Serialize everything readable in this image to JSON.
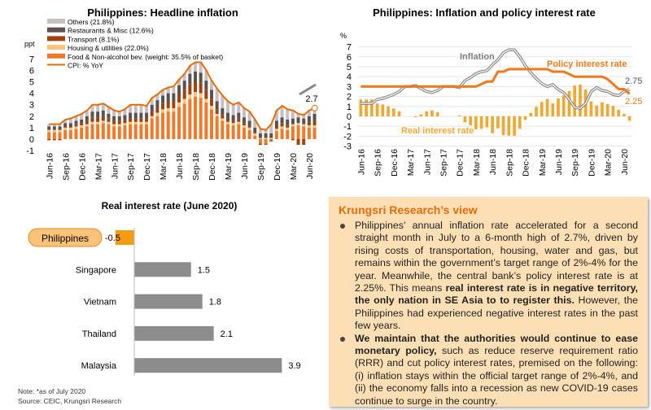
{
  "chart_data": [
    {
      "type": "bar",
      "title": "Philippines: Headline inflation",
      "ylabel": "ppt",
      "ylim": [
        -1,
        7
      ],
      "yticks": [
        "-1",
        "0",
        "1",
        "2",
        "3",
        "4",
        "5",
        "6",
        "7"
      ],
      "xticks": [
        "Jun-16",
        "Sep-16",
        "Dec-16",
        "Mar-17",
        "Jun-17",
        "Sep-17",
        "Dec-17",
        "Mar-18",
        "Jun-18",
        "Sep-18",
        "Dec-18",
        "Mar-19",
        "Jun-19",
        "Sep-19",
        "Dec-19",
        "Mar-20",
        "Jun-20"
      ],
      "legend": [
        "Others (21.8%)",
        "Restaurants & Misc (12.6%)",
        "Transport (8.1%)",
        "Housing & utilities (22.0%)",
        "Food & Non-alcohol bev. (weight: 35.5% of basket)",
        "CPI: % YoY"
      ],
      "colors": {
        "others": "#c9bfc2",
        "restaurants": "#5b5151",
        "transport": "#a0420f",
        "housing": "#fbc47a",
        "food": "#f0792a",
        "cpi": "#e46c0a"
      },
      "cpi": [
        1.3,
        1.3,
        1.3,
        1.7,
        1.8,
        2.0,
        2.2,
        2.5,
        3.0,
        3.0,
        3.1,
        2.8,
        2.5,
        2.4,
        2.6,
        3.0,
        3.0,
        3.0,
        2.9,
        3.6,
        3.9,
        4.3,
        4.5,
        4.6,
        5.2,
        5.7,
        6.4,
        6.7,
        6.7,
        6.0,
        5.1,
        4.4,
        3.8,
        3.3,
        3.0,
        3.2,
        2.7,
        2.4,
        1.7,
        0.9,
        0.8,
        1.3,
        2.5,
        2.9,
        2.6,
        2.5,
        2.2,
        2.1,
        2.5,
        2.7
      ],
      "food": [
        0.6,
        0.6,
        0.6,
        0.8,
        0.8,
        0.9,
        1.0,
        1.1,
        1.3,
        1.3,
        1.4,
        1.3,
        1.1,
        1.1,
        1.2,
        1.3,
        1.3,
        1.3,
        1.3,
        1.8,
        2.0,
        2.3,
        2.4,
        2.4,
        2.8,
        3.1,
        3.5,
        3.7,
        3.6,
        3.2,
        2.6,
        2.0,
        1.6,
        1.3,
        1.2,
        1.3,
        1.0,
        0.8,
        0.3,
        -0.4,
        -0.4,
        -0.1,
        0.7,
        0.9,
        0.8,
        1.1,
        1.2,
        1.1,
        1.0,
        1.0
      ],
      "housing": [
        0.2,
        0.2,
        0.2,
        0.2,
        0.2,
        0.2,
        0.2,
        0.2,
        0.2,
        0.2,
        0.2,
        0.2,
        0.2,
        0.2,
        0.2,
        0.2,
        0.2,
        0.2,
        0.2,
        0.2,
        0.3,
        0.3,
        0.3,
        0.3,
        0.4,
        0.4,
        0.4,
        0.4,
        0.4,
        0.3,
        0.3,
        0.2,
        0.2,
        0.2,
        0.2,
        0.2,
        0.2,
        0.2,
        0.2,
        0.1,
        0.1,
        0.1,
        0.2,
        0.2,
        0.2,
        0.2,
        0.2,
        0.2,
        0.2,
        0.2
      ],
      "transport": [
        -0.1,
        -0.1,
        -0.1,
        0.1,
        0.1,
        0.2,
        0.2,
        0.3,
        0.4,
        0.4,
        0.4,
        0.3,
        0.3,
        0.3,
        0.3,
        0.3,
        0.3,
        0.3,
        0.3,
        0.4,
        0.5,
        0.5,
        0.6,
        0.6,
        0.7,
        0.8,
        0.9,
        0.9,
        0.9,
        0.8,
        0.6,
        0.4,
        0.3,
        0.2,
        0.2,
        0.3,
        0.2,
        0.2,
        0.1,
        -0.1,
        -0.1,
        -0.1,
        0.2,
        0.3,
        0.2,
        -0.1,
        -0.5,
        -0.5,
        0.3,
        0.4
      ],
      "restaurants": [
        0.3,
        0.3,
        0.3,
        0.3,
        0.3,
        0.3,
        0.3,
        0.4,
        0.5,
        0.5,
        0.5,
        0.4,
        0.4,
        0.4,
        0.4,
        0.5,
        0.5,
        0.5,
        0.5,
        0.6,
        0.6,
        0.7,
        0.7,
        0.7,
        0.8,
        0.8,
        0.9,
        0.9,
        0.9,
        0.8,
        0.8,
        0.7,
        0.6,
        0.6,
        0.5,
        0.5,
        0.5,
        0.4,
        0.4,
        0.4,
        0.4,
        0.4,
        0.5,
        0.5,
        0.5,
        0.5,
        0.5,
        0.5,
        0.5,
        0.6
      ],
      "annotation": "2.7"
    },
    {
      "type": "line",
      "title": "Philippines: Inflation and policy interest rate",
      "ylabel": "%",
      "ylim": [
        -3,
        7
      ],
      "yticks": [
        "-3",
        "-2",
        "-1",
        "0",
        "1",
        "2",
        "3",
        "4",
        "5",
        "6",
        "7"
      ],
      "series_labels": {
        "inflation": "Inflation",
        "policy": "Policy interest rate",
        "real": "Real interest rate"
      },
      "colors": {
        "inflation": "#7f7f7f",
        "policy": "#f07a1a",
        "real": "#f0a830"
      },
      "policy": [
        3,
        3,
        3,
        3,
        3,
        3,
        3,
        3,
        3,
        3,
        3,
        3,
        3,
        3,
        3,
        3,
        3,
        3,
        3,
        3,
        3,
        3,
        3.25,
        3.5,
        3.5,
        4.5,
        4.5,
        4.75,
        4.75,
        4.75,
        4.75,
        4.75,
        4.75,
        4.75,
        4.75,
        4.5,
        4.5,
        4.5,
        4.25,
        4,
        4,
        4,
        4,
        4,
        4,
        3.75,
        3.25,
        2.75,
        2.75,
        2.25
      ],
      "end_labels": {
        "inflation": "2.75",
        "policy": "2.25"
      }
    },
    {
      "type": "bar",
      "title": "Real interest rate (June 2020)",
      "categories": [
        "Philippines",
        "Singapore",
        "Vietnam",
        "Thailand",
        "Malaysia"
      ],
      "values": [
        -0.5,
        1.5,
        1.8,
        2.1,
        3.9
      ],
      "value_labels": [
        "-0.5",
        "1.5",
        "1.8",
        "2.1",
        "3.9"
      ],
      "colors": {
        "highlight": "#f39c12",
        "default": "#8c8c8c"
      }
    }
  ],
  "view": {
    "title": "Krungsri Research’s view",
    "b1_plain": "Philippines’ annual inflation rate accelerated for a second straight month in July to a 6-month high of 2.7%, driven by rising costs of transportation, housing, water and gas, but remains within the government’s target range of 2%-4% for the year. Meanwhile, the central bank’s policy interest rate is at 2.25%. This means ",
    "b1_bold": "real interest rate is in negative territory, the only nation in SE Asia to to register this.",
    "b1_tail": " However, the Philippines had experienced negative interest rates in the past few years.",
    "b2_bold": "We maintain that the authorities would continue to ease monetary policy,",
    "b2_tail": " such as reduce reserve requirement ratio (RRR) and cut policy interest rates, premised on the following: (i) inflation stays within the official target range of 2%-4%, and (ii) the economy falls into a recession as new COVID-19 cases continue to surge in the country."
  },
  "notes": {
    "note": "Note: *as of July 2020",
    "source": "Source: CEIC, Krungsri Research"
  }
}
